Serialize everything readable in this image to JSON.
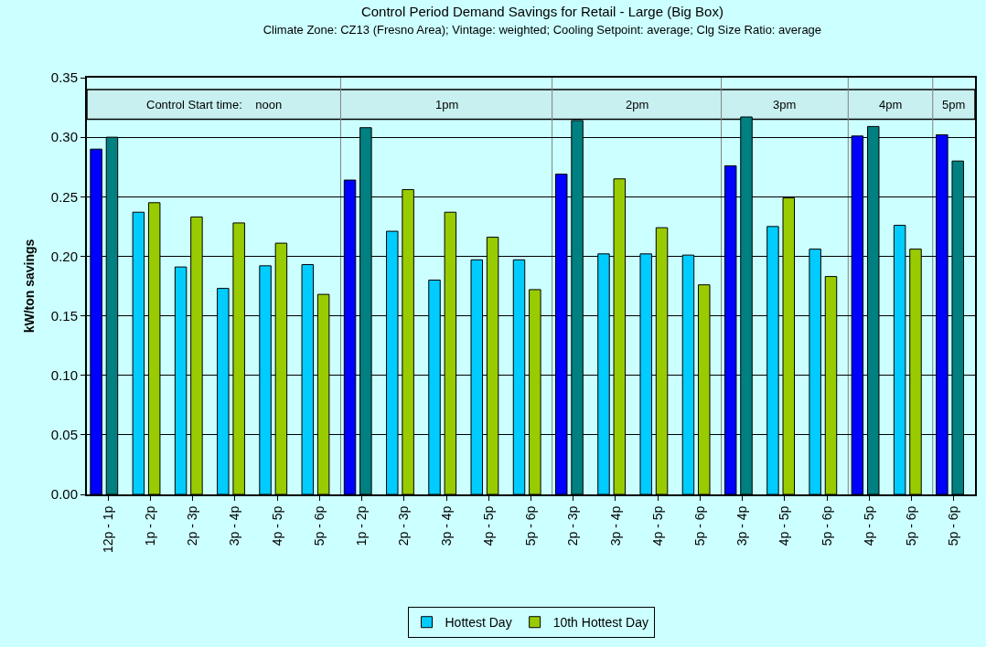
{
  "chart_data": {
    "type": "bar",
    "title": "Control Period Demand Savings for Retail - Large (Big Box)",
    "subtitle": "Climate Zone: CZ13 (Fresno Area); Vintage: weighted; Cooling Setpoint: average; Clg Size Ratio: average",
    "ylabel": "kW/ton savings",
    "categories": [
      "12p - 1p",
      "1p - 2p",
      "2p - 3p",
      "3p - 4p",
      "4p - 5p",
      "5p - 6p",
      "1p - 2p",
      "2p - 3p",
      "3p - 4p",
      "4p - 5p",
      "5p - 6p",
      "2p - 3p",
      "3p - 4p",
      "4p - 5p",
      "5p - 6p",
      "3p - 4p",
      "4p - 5p",
      "5p - 6p",
      "4p - 5p",
      "5p - 6p",
      "5p - 6p"
    ],
    "series": [
      {
        "name": "Hottest Day",
        "color": "#00ccff",
        "colors": [
          "#0000ff",
          "#00ccff",
          "#00ccff",
          "#00ccff",
          "#00ccff",
          "#00ccff",
          "#0000ff",
          "#00ccff",
          "#00ccff",
          "#00ccff",
          "#00ccff",
          "#0000ff",
          "#00ccff",
          "#00ccff",
          "#00ccff",
          "#0000ff",
          "#00ccff",
          "#00ccff",
          "#0000ff",
          "#00ccff",
          "#0000ff"
        ],
        "values": [
          0.29,
          0.237,
          0.191,
          0.173,
          0.192,
          0.193,
          0.264,
          0.221,
          0.18,
          0.197,
          0.197,
          0.269,
          0.202,
          0.202,
          0.201,
          0.276,
          0.225,
          0.206,
          0.301,
          0.226,
          0.302
        ]
      },
      {
        "name": "10th Hottest Day",
        "color": "#99cc00",
        "colors": [
          "#008080",
          "#99cc00",
          "#99cc00",
          "#99cc00",
          "#99cc00",
          "#99cc00",
          "#008080",
          "#99cc00",
          "#99cc00",
          "#99cc00",
          "#99cc00",
          "#008080",
          "#99cc00",
          "#99cc00",
          "#99cc00",
          "#008080",
          "#99cc00",
          "#99cc00",
          "#008080",
          "#99cc00",
          "#008080"
        ],
        "values": [
          0.3,
          0.245,
          0.233,
          0.228,
          0.211,
          0.168,
          0.308,
          0.256,
          0.237,
          0.216,
          0.172,
          0.314,
          0.265,
          0.224,
          0.176,
          0.317,
          0.249,
          0.183,
          0.309,
          0.206,
          0.28
        ]
      }
    ],
    "ylim": [
      0,
      0.35
    ],
    "yticks": [
      {
        "value": 0,
        "label": "0.00"
      },
      0.05,
      {
        "value": 0.1,
        "label": "0.10"
      },
      0.15,
      {
        "value": 0.2,
        "label": "0.20"
      },
      0.25,
      {
        "value": 0.3,
        "label": "0.30"
      },
      0.35
    ],
    "bands": [
      {
        "axis": "y",
        "from": 0.315,
        "to": 0.34,
        "color": "#c8f0f0"
      }
    ],
    "annotations": [
      "Control Start time:    noon",
      "1pm",
      "2pm",
      "3pm",
      "4pm",
      "5pm"
    ],
    "grid": "y",
    "legend": "bottom"
  }
}
